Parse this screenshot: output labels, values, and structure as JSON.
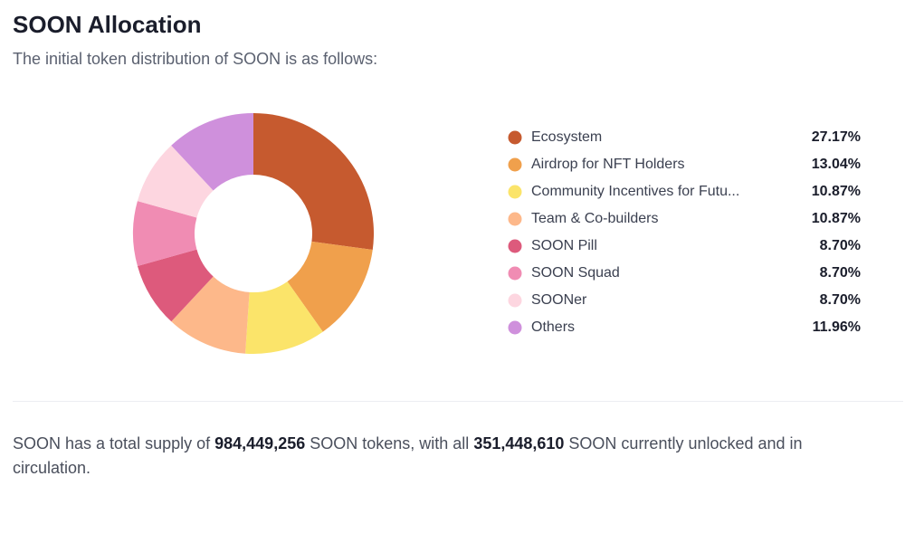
{
  "header": {
    "title": "SOON Allocation",
    "subtitle": "The initial token distribution of SOON is as follows:"
  },
  "chart_data": {
    "type": "donut",
    "categories": [
      "Ecosystem",
      "Airdrop for NFT Holders",
      "Community Incentives for Futu...",
      "Team & Co-builders",
      "SOON Pill",
      "SOON Squad",
      "SOONer",
      "Others"
    ],
    "values": [
      27.17,
      13.04,
      10.87,
      10.87,
      8.7,
      8.7,
      8.7,
      11.96
    ],
    "value_labels": [
      "27.17%",
      "13.04%",
      "10.87%",
      "10.87%",
      "8.70%",
      "8.70%",
      "8.70%",
      "11.96%"
    ],
    "colors": [
      "#c65a2f",
      "#f0a04c",
      "#fbe46a",
      "#fdb88a",
      "#dd5a7c",
      "#f08cb3",
      "#fdd6e0",
      "#cf90dc"
    ]
  },
  "footer": {
    "parts": [
      "SOON has a total supply of ",
      "984,449,256",
      " SOON tokens, with all ",
      "351,448,610",
      " SOON currently unlocked and in circulation."
    ]
  }
}
